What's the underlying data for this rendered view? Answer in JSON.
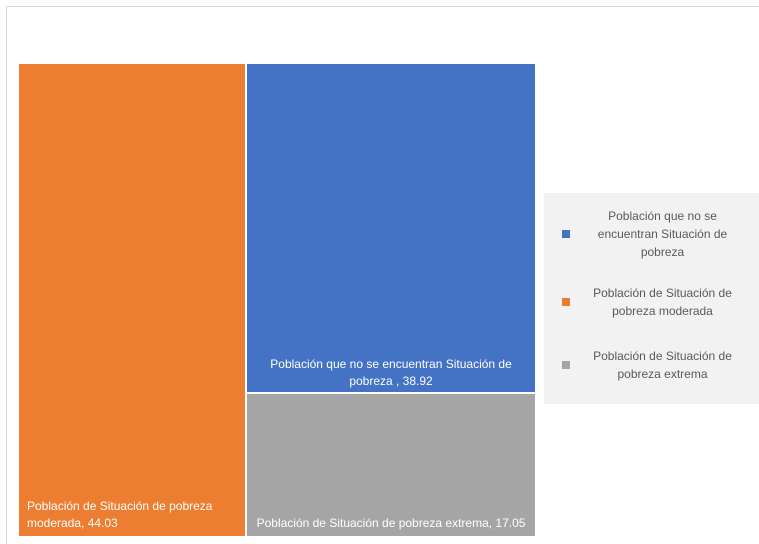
{
  "chart_data": {
    "type": "treemap",
    "title": "",
    "items": [
      {
        "name": "Población de Situación de pobreza moderada",
        "value": 44.03,
        "label": "Población de Situación de pobreza moderada, 44.03",
        "color": "#ED7D31"
      },
      {
        "name": "Población que no se encuentran Situación de pobreza",
        "value": 38.92,
        "label": "Población que no se encuentran Situación de pobreza , 38.92",
        "color": "#4472C4"
      },
      {
        "name": "Población de Situación de pobreza extrema",
        "value": 17.05,
        "label": "Población de Situación de pobreza extrema, 17.05",
        "color": "#A5A5A5"
      }
    ],
    "legend": {
      "position": "right",
      "entries": [
        {
          "label": "Población que no se encuentran Situación de pobreza",
          "color": "#4472C4"
        },
        {
          "label": "Población de Situación de pobreza moderada",
          "color": "#ED7D31"
        },
        {
          "label": "Población de Situación de pobreza extrema",
          "color": "#A5A5A5"
        }
      ]
    }
  }
}
